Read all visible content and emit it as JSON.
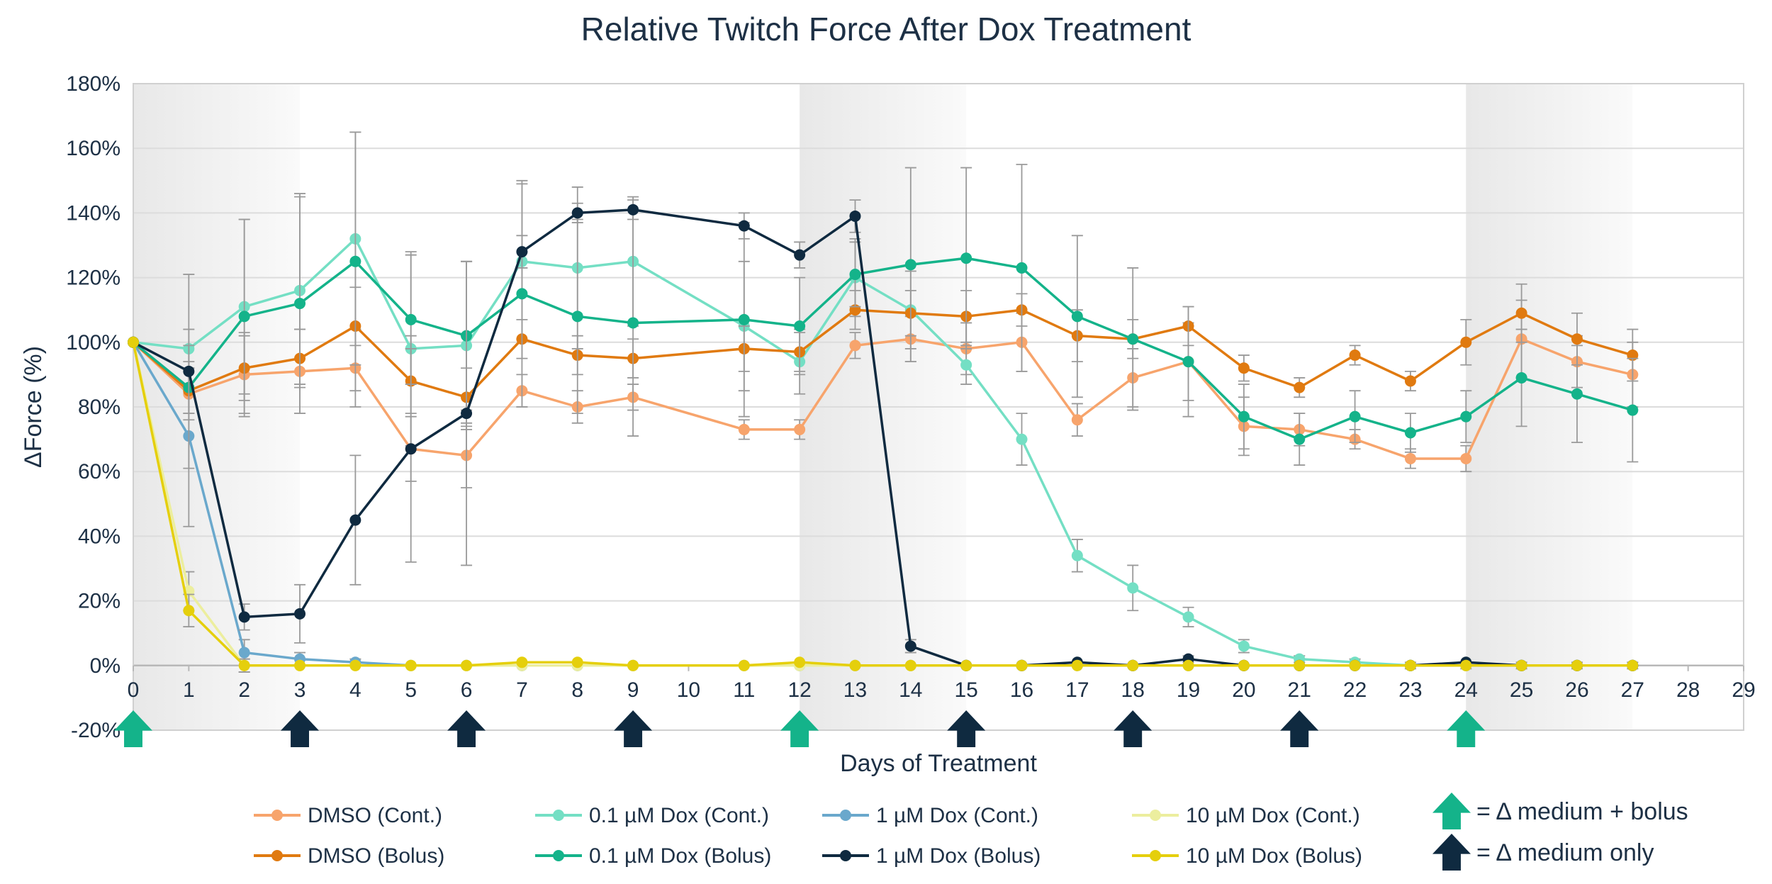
{
  "chart_data": {
    "type": "line",
    "title": "Relative Twitch Force After Dox Treatment",
    "xlabel": "Days of Treatment",
    "ylabel": "ΔForce (%)",
    "xlim": [
      0,
      29
    ],
    "ylim": [
      -20,
      180
    ],
    "x_ticks": [
      0,
      1,
      2,
      3,
      4,
      5,
      6,
      7,
      8,
      9,
      10,
      11,
      12,
      13,
      14,
      15,
      16,
      17,
      18,
      19,
      20,
      21,
      22,
      23,
      24,
      25,
      26,
      27,
      28,
      29
    ],
    "y_ticks": [
      -20,
      0,
      20,
      40,
      60,
      80,
      100,
      120,
      140,
      160,
      180
    ],
    "y_tick_suffix": "%",
    "grid": true,
    "shaded_ranges": [
      [
        0,
        3
      ],
      [
        12,
        15
      ],
      [
        24,
        27
      ]
    ],
    "series": [
      {
        "name": "DMSO (Cont.)",
        "color": "#f7a46c",
        "x": [
          0,
          1,
          2,
          3,
          4,
          5,
          6,
          7,
          8,
          9,
          11,
          12,
          13,
          14,
          15,
          16,
          17,
          18,
          19,
          20,
          21,
          22,
          23,
          24,
          25,
          26,
          27
        ],
        "values": [
          100,
          84,
          90,
          91,
          92,
          67,
          65,
          85,
          80,
          83,
          73,
          73,
          99,
          101,
          98,
          100,
          76,
          89,
          94,
          74,
          73,
          70,
          64,
          64,
          101,
          94,
          90
        ],
        "err": [
          0,
          8,
          13,
          13,
          12,
          10,
          10,
          5,
          5,
          4,
          3,
          3,
          4,
          7,
          8,
          9,
          5,
          9,
          12,
          9,
          5,
          3,
          3,
          4,
          12,
          8,
          10
        ]
      },
      {
        "name": "0.1 µM Dox (Cont.)",
        "color": "#74dfc4",
        "x": [
          0,
          1,
          2,
          3,
          4,
          5,
          6,
          7,
          8,
          9,
          11,
          12,
          13,
          14,
          15,
          16,
          17,
          18,
          19,
          20,
          21,
          22,
          23,
          24,
          25,
          26,
          27
        ],
        "values": [
          100,
          98,
          111,
          116,
          132,
          98,
          99,
          125,
          123,
          125,
          105,
          94,
          120,
          110,
          93,
          70,
          34,
          24,
          15,
          6,
          2,
          1,
          0,
          0,
          0,
          0,
          0
        ],
        "err": [
          0,
          6,
          27,
          29,
          33,
          30,
          26,
          24,
          25,
          20,
          20,
          10,
          12,
          12,
          6,
          8,
          5,
          7,
          3,
          2,
          1,
          1,
          1,
          1,
          1,
          1,
          1
        ]
      },
      {
        "name": "1 µM Dox (Cont.)",
        "color": "#6aa8cc",
        "x": [
          0,
          1,
          2,
          3,
          4,
          5,
          6,
          7,
          8,
          9,
          11,
          12,
          13,
          14,
          15,
          16,
          17,
          18,
          19,
          20,
          21,
          22,
          23,
          24,
          25,
          26,
          27
        ],
        "values": [
          100,
          71,
          4,
          2,
          1,
          0,
          0,
          0,
          0,
          0,
          0,
          0,
          0,
          0,
          0,
          0,
          0,
          0,
          0,
          0,
          0,
          0,
          0,
          0,
          0,
          0,
          0
        ],
        "err": [
          0,
          28,
          4,
          2,
          1,
          0,
          0,
          0,
          0,
          0,
          0,
          0,
          0,
          0,
          0,
          0,
          0,
          0,
          0,
          0,
          0,
          0,
          0,
          0,
          0,
          0,
          0
        ]
      },
      {
        "name": "10 µM Dox (Cont.)",
        "color": "#ecee9e",
        "x": [
          0,
          1,
          2,
          3,
          4,
          5,
          6,
          7,
          8,
          9,
          11,
          12,
          13,
          14,
          15,
          16,
          17,
          18,
          19,
          20,
          21,
          22,
          23,
          24,
          25,
          26,
          27
        ],
        "values": [
          100,
          23,
          0,
          0,
          0,
          0,
          0,
          0,
          0,
          0,
          0,
          0,
          0,
          0,
          0,
          0,
          0,
          0,
          0,
          0,
          0,
          0,
          0,
          0,
          0,
          0,
          0
        ],
        "err": [
          0,
          6,
          2,
          0,
          0,
          0,
          0,
          0,
          0,
          0,
          0,
          0,
          0,
          0,
          0,
          0,
          0,
          0,
          0,
          0,
          0,
          0,
          0,
          0,
          0,
          0,
          0
        ]
      },
      {
        "name": "DMSO (Bolus)",
        "color": "#e07a10",
        "x": [
          0,
          1,
          2,
          3,
          4,
          5,
          6,
          7,
          8,
          9,
          11,
          12,
          13,
          14,
          15,
          16,
          17,
          18,
          19,
          20,
          21,
          22,
          23,
          24,
          25,
          26,
          27
        ],
        "values": [
          100,
          85,
          92,
          95,
          105,
          88,
          83,
          101,
          96,
          95,
          98,
          97,
          110,
          109,
          108,
          110,
          102,
          101,
          105,
          92,
          86,
          96,
          88,
          100,
          109,
          101,
          96
        ],
        "err": [
          0,
          7,
          10,
          9,
          12,
          10,
          9,
          6,
          6,
          6,
          7,
          6,
          6,
          7,
          8,
          5,
          8,
          6,
          6,
          4,
          3,
          3,
          3,
          7,
          9,
          8,
          8
        ]
      },
      {
        "name": "0.1 µM Dox (Bolus)",
        "color": "#14b38a",
        "x": [
          0,
          1,
          2,
          3,
          4,
          5,
          6,
          7,
          8,
          9,
          11,
          12,
          13,
          14,
          15,
          16,
          17,
          18,
          19,
          20,
          21,
          22,
          23,
          24,
          25,
          26,
          27
        ],
        "values": [
          100,
          86,
          108,
          112,
          125,
          107,
          102,
          115,
          108,
          106,
          107,
          105,
          121,
          124,
          126,
          123,
          108,
          101,
          94,
          77,
          70,
          77,
          72,
          77,
          89,
          84,
          79
        ],
        "err": [
          0,
          8,
          30,
          34,
          40,
          20,
          23,
          35,
          30,
          35,
          30,
          15,
          10,
          30,
          28,
          32,
          25,
          22,
          17,
          10,
          8,
          8,
          6,
          8,
          15,
          15,
          16
        ]
      },
      {
        "name": "1 µM Dox (Bolus)",
        "color": "#0f2a40",
        "x": [
          0,
          1,
          2,
          3,
          4,
          5,
          6,
          7,
          8,
          9,
          11,
          12,
          13,
          14,
          15,
          16,
          17,
          18,
          19,
          20,
          21,
          22,
          23,
          24,
          25,
          26,
          27
        ],
        "values": [
          100,
          91,
          15,
          16,
          45,
          67,
          78,
          128,
          140,
          141,
          136,
          127,
          139,
          6,
          0,
          0,
          1,
          0,
          2,
          0,
          0,
          0,
          0,
          1,
          0,
          0,
          0
        ],
        "err": [
          0,
          30,
          4,
          9,
          20,
          35,
          47,
          5,
          3,
          3,
          4,
          4,
          5,
          2,
          0,
          0,
          0,
          0,
          1,
          0,
          0,
          0,
          0,
          0,
          0,
          0,
          0
        ]
      },
      {
        "name": "10 µM Dox (Bolus)",
        "color": "#e5cf0c",
        "x": [
          0,
          1,
          2,
          3,
          4,
          5,
          6,
          7,
          8,
          9,
          11,
          12,
          13,
          14,
          15,
          16,
          17,
          18,
          19,
          20,
          21,
          22,
          23,
          24,
          25,
          26,
          27
        ],
        "values": [
          100,
          17,
          0,
          0,
          0,
          0,
          0,
          1,
          1,
          0,
          0,
          1,
          0,
          0,
          0,
          0,
          0,
          0,
          0,
          0,
          0,
          0,
          0,
          0,
          0,
          0,
          0
        ],
        "err": [
          0,
          5,
          2,
          0,
          0,
          0,
          0,
          0,
          0,
          0,
          0,
          0,
          0,
          0,
          0,
          0,
          0,
          0,
          0,
          0,
          0,
          0,
          0,
          0,
          0,
          0,
          0
        ]
      }
    ],
    "arrow_markers": [
      {
        "day": 0,
        "kind": "medium_bolus"
      },
      {
        "day": 3,
        "kind": "medium_only"
      },
      {
        "day": 6,
        "kind": "medium_only"
      },
      {
        "day": 9,
        "kind": "medium_only"
      },
      {
        "day": 12,
        "kind": "medium_bolus"
      },
      {
        "day": 15,
        "kind": "medium_only"
      },
      {
        "day": 18,
        "kind": "medium_only"
      },
      {
        "day": 21,
        "kind": "medium_only"
      },
      {
        "day": 24,
        "kind": "medium_bolus"
      }
    ],
    "arrow_legend": [
      {
        "kind": "medium_bolus",
        "label": "= Δ medium + bolus",
        "color": "#14b38a"
      },
      {
        "kind": "medium_only",
        "label": "= Δ medium only",
        "color": "#0f2a40"
      }
    ],
    "legend": [
      "DMSO (Cont.)",
      "0.1 µM Dox (Cont.)",
      "1 µM Dox (Cont.)",
      "10 µM Dox (Cont.)",
      "DMSO (Bolus)",
      "0.1 µM Dox (Bolus)",
      "1 µM Dox (Bolus)",
      "10 µM Dox (Bolus)"
    ],
    "legend_position": "bottom"
  }
}
